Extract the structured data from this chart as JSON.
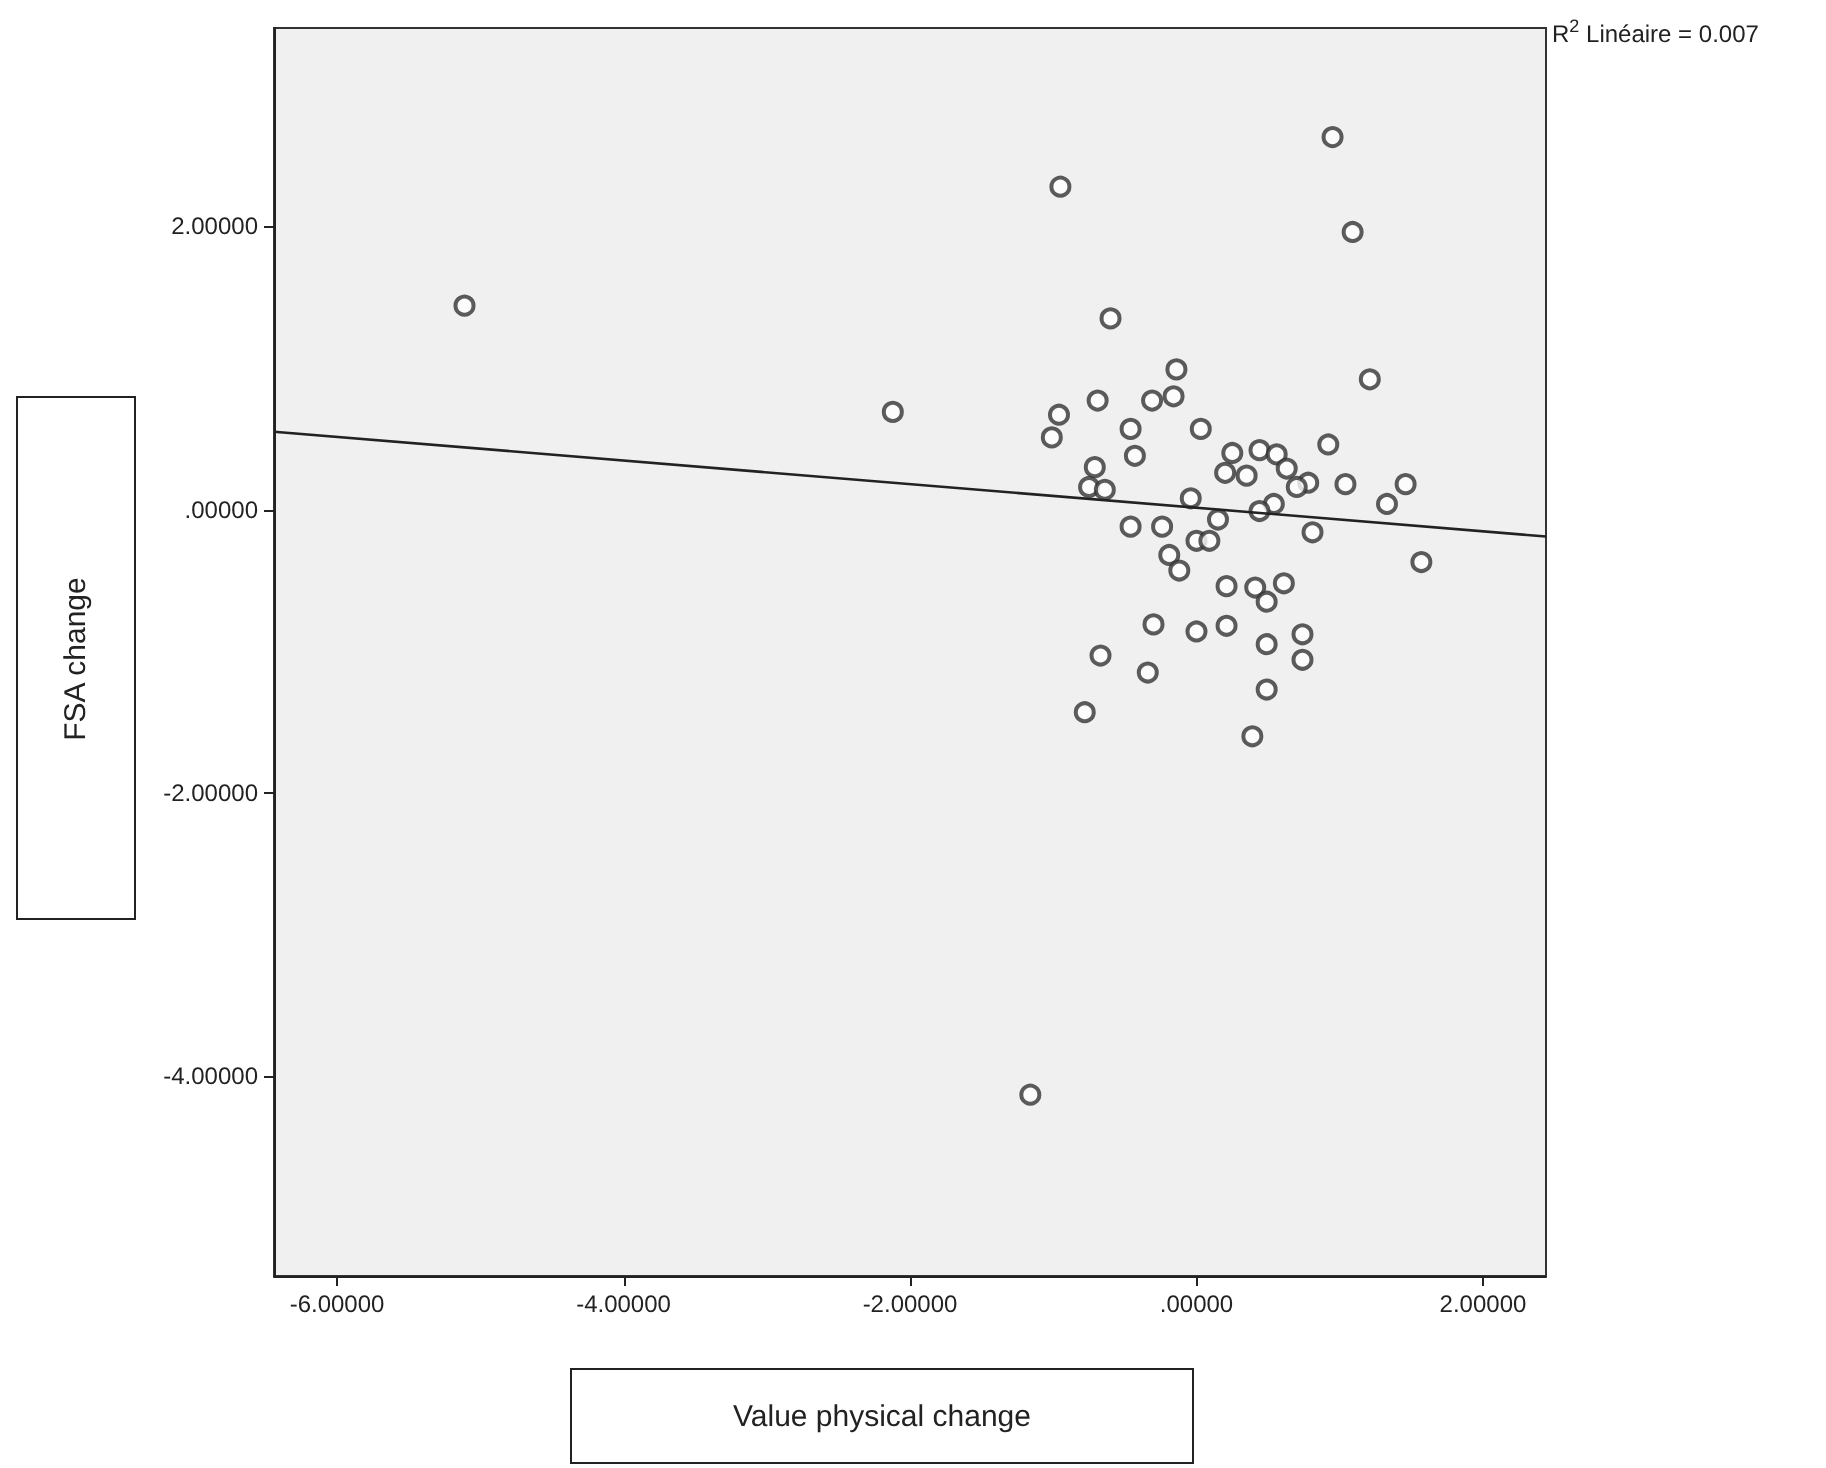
{
  "chart_data": {
    "type": "scatter",
    "xlabel": "Value physical change",
    "ylabel": "FSA change",
    "annotations": [
      "R$^{2}$ Linéaire = 0.007"
    ],
    "xlim": [
      -6.44,
      2.44
    ],
    "ylim": [
      -5.41,
      3.4
    ],
    "xticks": [
      {
        "value": -6,
        "label": "-6.00000"
      },
      {
        "value": -4,
        "label": "-4.00000"
      },
      {
        "value": -2,
        "label": "-2.00000"
      },
      {
        "value": 0,
        "label": ".00000"
      },
      {
        "value": 2,
        "label": "2.00000"
      }
    ],
    "yticks": [
      {
        "value": -4,
        "label": "-4.00000"
      },
      {
        "value": -2,
        "label": "-2.00000"
      },
      {
        "value": 0,
        "label": ".00000"
      },
      {
        "value": 2,
        "label": "2.00000"
      }
    ],
    "grid": false,
    "marker": "circle",
    "series": [
      {
        "type": "scatter",
        "color": "#333333",
        "x": [
          0.95,
          -0.95,
          1.09,
          -0.6,
          -0.14,
          1.21,
          -2.12,
          -0.96,
          -0.69,
          -0.31,
          -0.16,
          -1.01,
          -0.46,
          0.03,
          -0.43,
          -0.71,
          -0.75,
          -0.64,
          0.25,
          0.44,
          0.56,
          0.2,
          0.35,
          0.63,
          0.92,
          0.78,
          0.7,
          1.04,
          1.46,
          1.33,
          -0.04,
          0.54,
          0.44,
          0.15,
          -0.46,
          -0.24,
          0.0,
          0.09,
          0.81,
          1.57,
          -0.19,
          -0.12,
          0.21,
          0.41,
          0.61,
          0.49,
          -0.3,
          0.0,
          0.21,
          0.74,
          0.49,
          0.74,
          -0.67,
          -0.34,
          0.49,
          -0.78,
          0.39,
          -5.11,
          -1.16
        ],
        "values": [
          2.63,
          2.28,
          1.96,
          1.35,
          0.99,
          0.92,
          0.69,
          0.67,
          0.77,
          0.77,
          0.8,
          0.51,
          0.57,
          0.57,
          0.38,
          0.3,
          0.16,
          0.14,
          0.4,
          0.42,
          0.39,
          0.26,
          0.24,
          0.29,
          0.46,
          0.19,
          0.16,
          0.18,
          0.18,
          0.04,
          0.08,
          0.04,
          -0.01,
          -0.07,
          -0.12,
          -0.12,
          -0.22,
          -0.22,
          -0.16,
          -0.37,
          -0.32,
          -0.43,
          -0.54,
          -0.55,
          -0.52,
          -0.65,
          -0.81,
          -0.86,
          -0.82,
          -0.88,
          -0.95,
          -1.06,
          -1.03,
          -1.15,
          -1.27,
          -1.43,
          -1.6,
          1.44,
          -4.13
        ]
      },
      {
        "type": "line",
        "color": "#222222",
        "marker": "none",
        "line_style": "solid",
        "x": [
          -6.44,
          2.44
        ],
        "values": [
          0.55,
          -0.19
        ]
      }
    ]
  }
}
